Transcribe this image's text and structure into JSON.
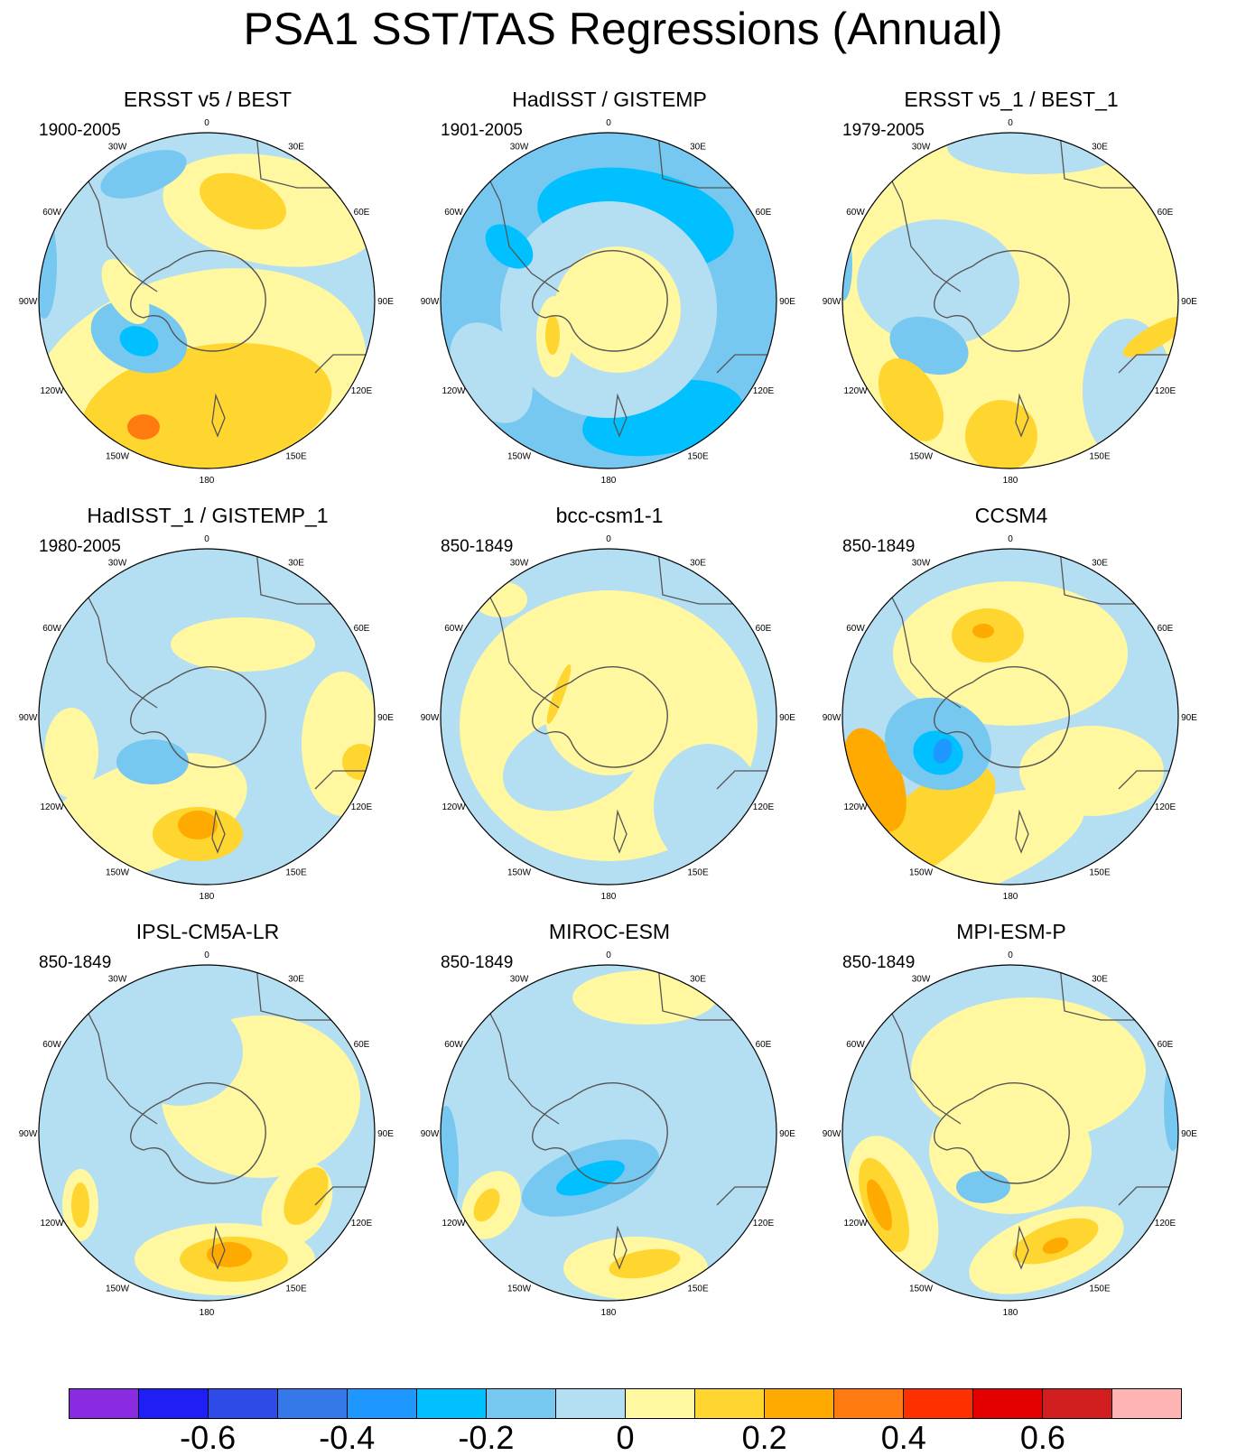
{
  "title": "PSA1 SST/TAS Regressions (Annual)",
  "panels": [
    {
      "title": "ERSST v5 / BEST",
      "period": "1900-2005",
      "variant": 0
    },
    {
      "title": "HadISST / GISTEMP",
      "period": "1901-2005",
      "variant": 1
    },
    {
      "title": "ERSST v5_1 / BEST_1",
      "period": "1979-2005",
      "variant": 2
    },
    {
      "title": "HadISST_1 / GISTEMP_1",
      "period": "1980-2005",
      "variant": 3
    },
    {
      "title": "bcc-csm1-1",
      "period": "850-1849",
      "variant": 4
    },
    {
      "title": "CCSM4",
      "period": "850-1849",
      "variant": 5
    },
    {
      "title": "IPSL-CM5A-LR",
      "period": "850-1849",
      "variant": 6
    },
    {
      "title": "MIROC-ESM",
      "period": "850-1849",
      "variant": 7
    },
    {
      "title": "MPI-ESM-P",
      "period": "850-1849",
      "variant": 8
    }
  ],
  "longitude_labels": [
    "0",
    "30E",
    "60E",
    "90E",
    "120E",
    "150E",
    "180",
    "150W",
    "120W",
    "90W",
    "60W",
    "30W"
  ],
  "colorbar": {
    "colors": [
      "#8a2be2",
      "#1e1ef5",
      "#2e4be8",
      "#3678e8",
      "#1e98ff",
      "#00c0ff",
      "#76c8f0",
      "#b4def2",
      "#fff8a0",
      "#ffd530",
      "#ffaa00",
      "#ff7a10",
      "#ff3000",
      "#e50000",
      "#d21e1e",
      "#ffb4b4"
    ],
    "labels": [
      "-0.6",
      "-0.4",
      "-0.2",
      "0",
      "0.2",
      "0.4",
      "0.6"
    ],
    "label_values": [
      -0.6,
      -0.4,
      -0.2,
      0,
      0.2,
      0.4,
      0.6
    ],
    "min": -0.8,
    "max": 0.8
  }
}
